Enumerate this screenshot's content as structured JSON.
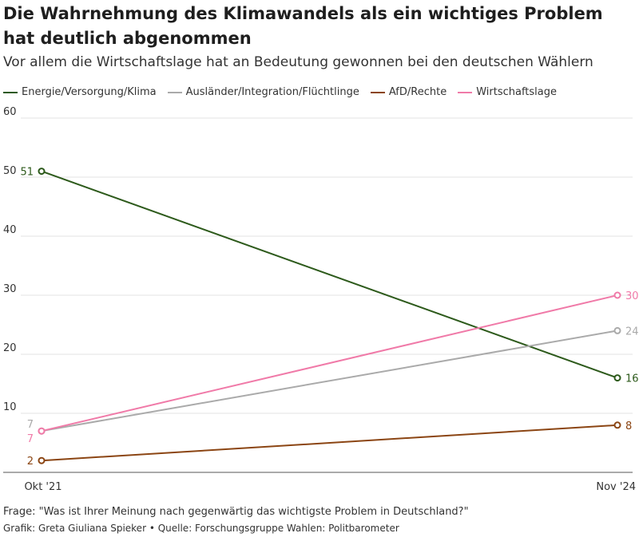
{
  "title": "Die Wahrnehmung des Klimawandels als ein wichtiges Problem hat deutlich abgenommen",
  "subtitle": "Vor allem die Wirtschaftslage hat an Bedeutung gewonnen bei den deutschen Wählern",
  "footer": {
    "question": "Frage: \"Was ist Ihrer Meinung nach gegenwärtig das wichtigste Problem in Deutschland?\"",
    "source": "Grafik: Greta Giuliana Spieker • Quelle: Forschungsgruppe Wahlen: Politbarometer"
  },
  "chart_data": {
    "type": "line",
    "x": [
      "Okt '21",
      "Nov '24"
    ],
    "ylim": [
      0,
      60
    ],
    "yticks": [
      10,
      20,
      30,
      40,
      50,
      60
    ],
    "grid": true,
    "legend_position": "top-left",
    "series": [
      {
        "name": "Energie/Versorgung/Klima",
        "values": [
          51,
          16
        ],
        "color": "#2d5a1b"
      },
      {
        "name": "Ausländer/Integration/Flüchtlinge",
        "values": [
          7,
          24
        ],
        "color": "#aaaaaa"
      },
      {
        "name": "AfD/Rechte",
        "values": [
          2,
          8
        ],
        "color": "#8b4513"
      },
      {
        "name": "Wirtschaftslage",
        "values": [
          7,
          30
        ],
        "color": "#f07aa8"
      }
    ]
  }
}
